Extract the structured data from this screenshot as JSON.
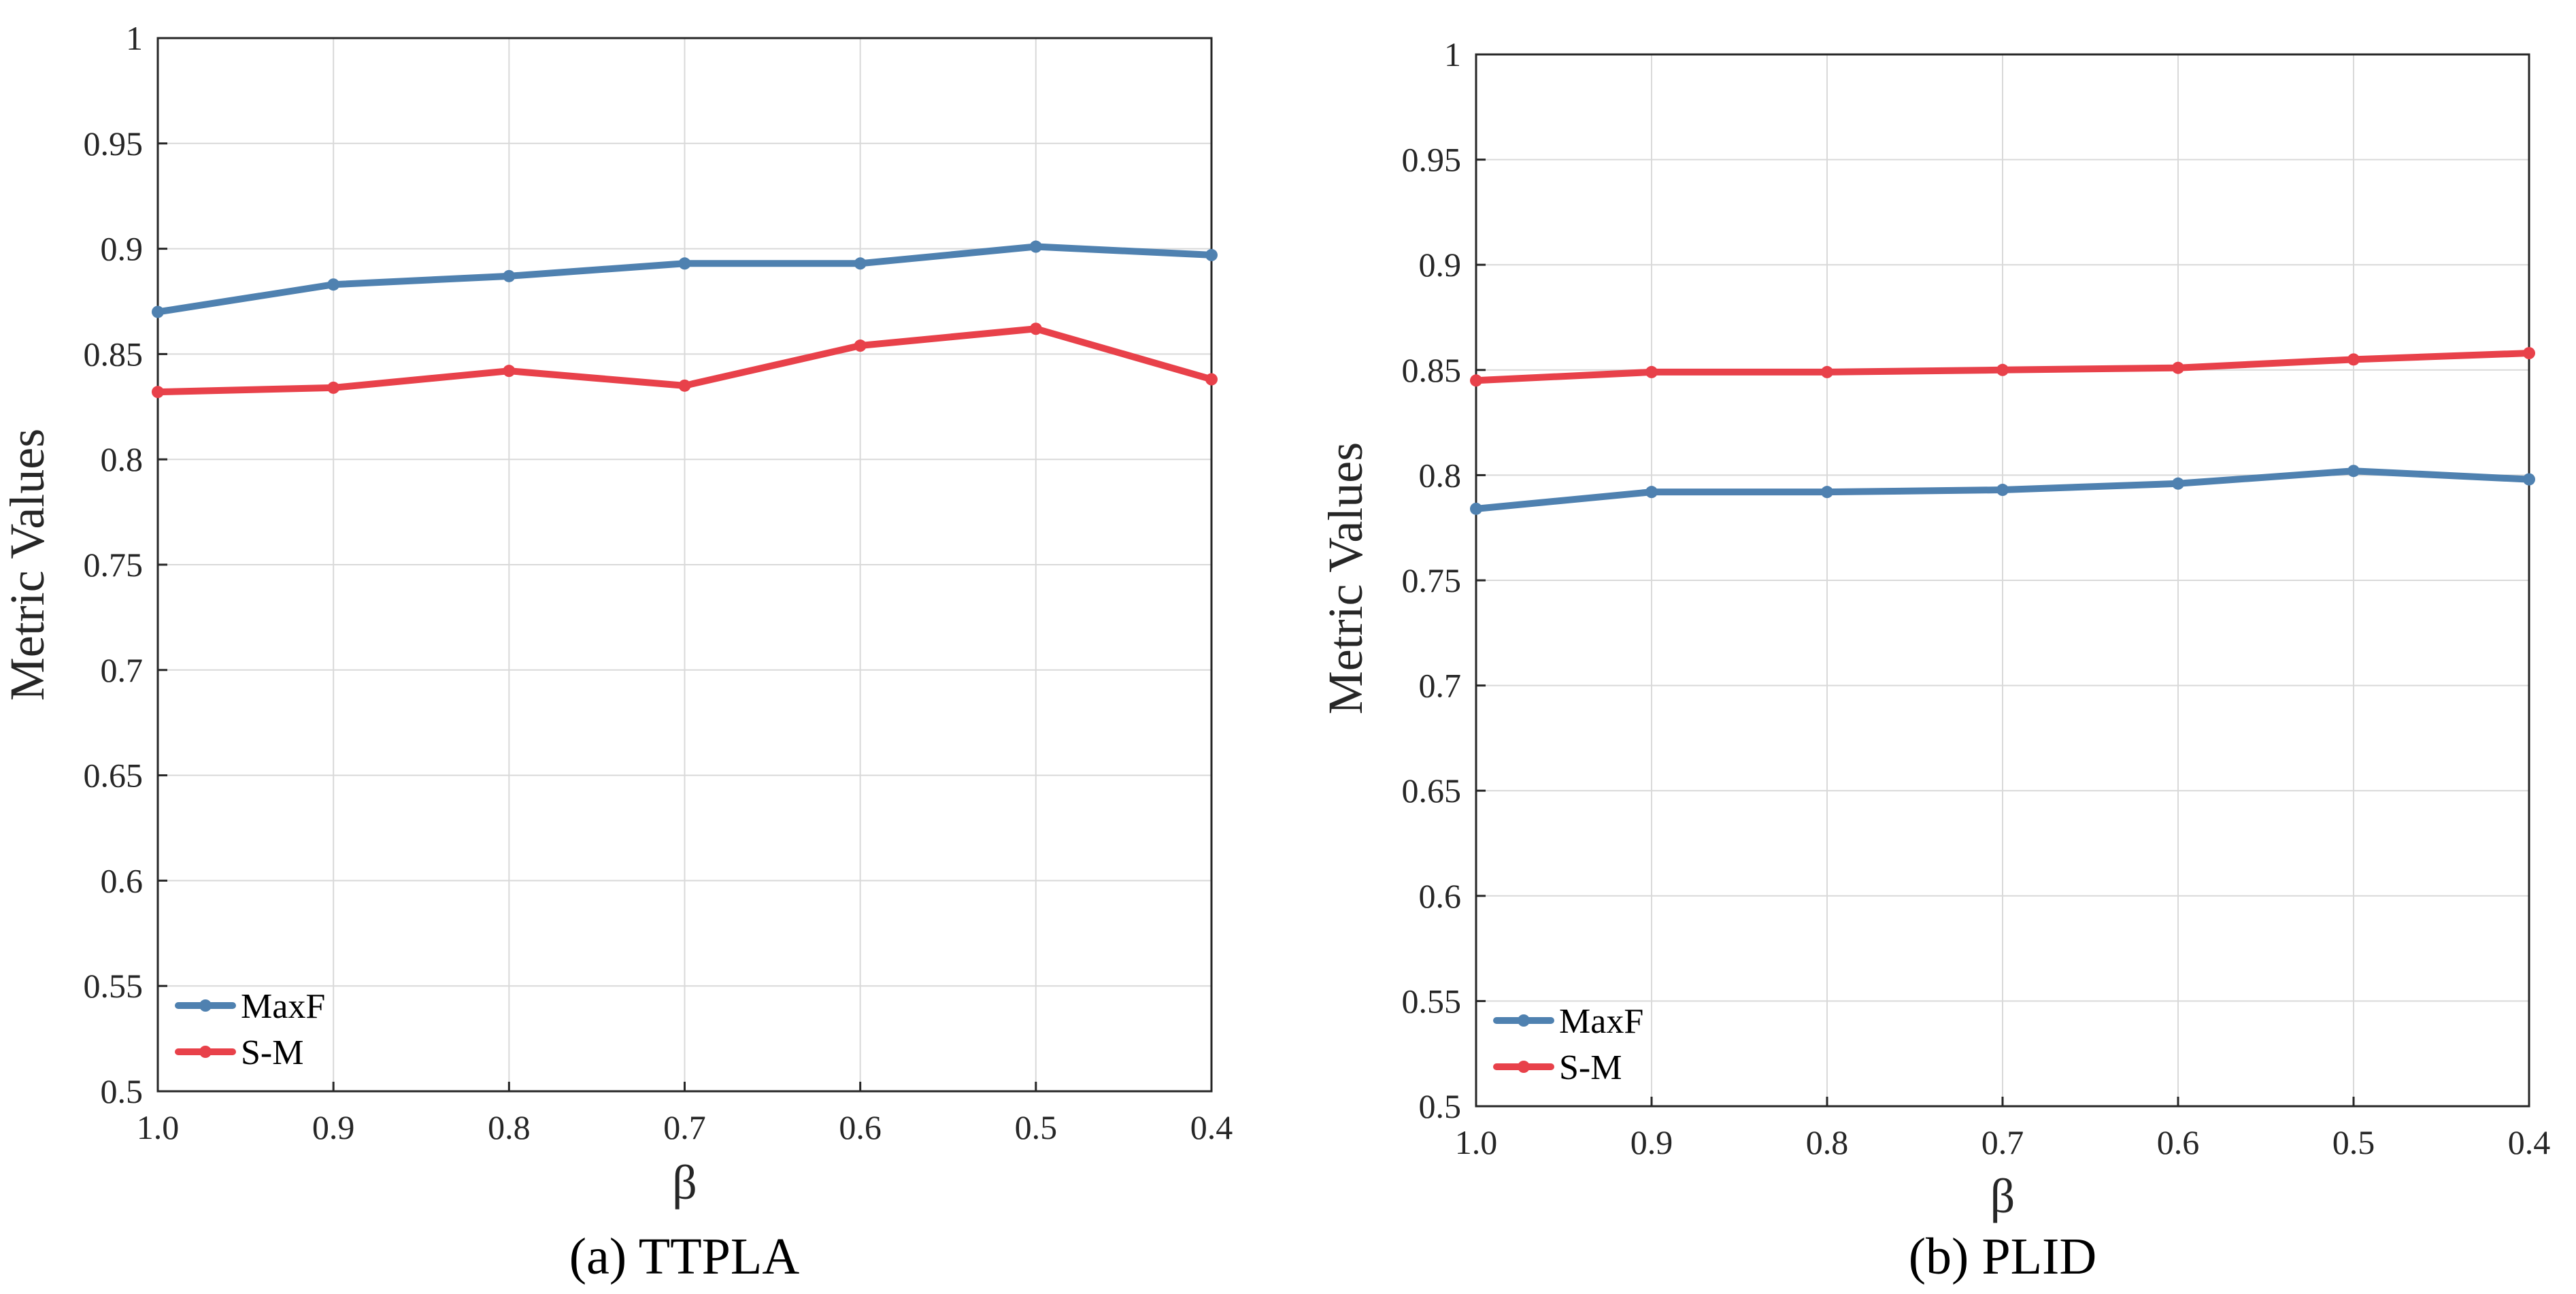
{
  "chart_data": [
    {
      "type": "line",
      "title": "(a) TTPLA",
      "xlabel": "β",
      "ylabel": "Metric Values",
      "categories": [
        "1.0",
        "0.9",
        "0.8",
        "0.7",
        "0.6",
        "0.5",
        "0.4"
      ],
      "ylim": [
        0.5,
        1
      ],
      "yticks": [
        "0.5",
        "0.55",
        "0.6",
        "0.65",
        "0.7",
        "0.75",
        "0.8",
        "0.85",
        "0.9",
        "0.95",
        "1"
      ],
      "grid": true,
      "legend_position": "bottom-left",
      "series": [
        {
          "name": "MaxF",
          "color": "#4f81b0",
          "values": [
            0.87,
            0.883,
            0.887,
            0.893,
            0.893,
            0.901,
            0.897
          ]
        },
        {
          "name": "S-M",
          "color": "#e8414a",
          "values": [
            0.832,
            0.834,
            0.842,
            0.835,
            0.854,
            0.862,
            0.838
          ]
        }
      ]
    },
    {
      "type": "line",
      "title": "(b) PLID",
      "xlabel": "β",
      "ylabel": "Metric Values",
      "categories": [
        "1.0",
        "0.9",
        "0.8",
        "0.7",
        "0.6",
        "0.5",
        "0.4"
      ],
      "ylim": [
        0.5,
        1
      ],
      "yticks": [
        "0.5",
        "0.55",
        "0.6",
        "0.65",
        "0.7",
        "0.75",
        "0.8",
        "0.85",
        "0.9",
        "0.95",
        "1"
      ],
      "grid": true,
      "legend_position": "bottom-left",
      "series": [
        {
          "name": "MaxF",
          "color": "#4f81b0",
          "values": [
            0.784,
            0.792,
            0.792,
            0.793,
            0.796,
            0.802,
            0.798
          ]
        },
        {
          "name": "S-M",
          "color": "#e8414a",
          "values": [
            0.845,
            0.849,
            0.849,
            0.85,
            0.851,
            0.855,
            0.858
          ]
        }
      ]
    }
  ]
}
